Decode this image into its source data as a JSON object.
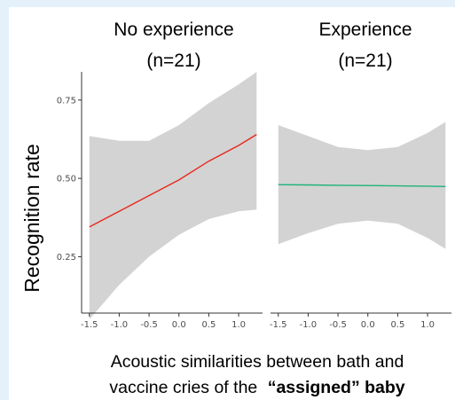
{
  "chart_data": {
    "type": "line",
    "ylabel": "Recognition rate",
    "xlabel_parts": [
      "Acoustic similarities between bath and",
      "vaccine cries of the",
      "“assigned” baby"
    ],
    "ylim": [
      0.07,
      0.84
    ],
    "yticks": [
      0.25,
      0.5,
      0.75
    ],
    "ytick_labels": [
      "0.25",
      "0.50",
      "0.75"
    ],
    "grid": false,
    "panels": [
      {
        "title_line1": "No experience",
        "title_line2": "(n=21)",
        "xlim": [
          -1.63,
          1.4
        ],
        "xticks": [
          -1.5,
          -1.0,
          -0.5,
          0.0,
          0.5,
          1.0
        ],
        "xtick_labels": [
          "-1.5",
          "-1.0",
          "-0.5",
          "0.0",
          "0.5",
          "1.0"
        ],
        "line_color": "#e8281e",
        "band_color": "#d3d3d3",
        "x": [
          -1.5,
          -1.0,
          -0.5,
          0.0,
          0.5,
          1.0,
          1.3
        ],
        "fit": [
          0.345,
          0.395,
          0.445,
          0.495,
          0.555,
          0.605,
          0.64
        ],
        "lower": [
          0.05,
          0.16,
          0.25,
          0.32,
          0.37,
          0.395,
          0.4
        ],
        "upper": [
          0.635,
          0.62,
          0.62,
          0.67,
          0.74,
          0.8,
          0.84
        ]
      },
      {
        "title_line1": "Experience",
        "title_line2": "(n=21)",
        "xlim": [
          -1.63,
          1.4
        ],
        "xticks": [
          -1.5,
          -1.0,
          -0.5,
          0.0,
          0.5,
          1.0
        ],
        "xtick_labels": [
          "-1.5",
          "-1.0",
          "-0.5",
          "0.0",
          "0.5",
          "1.0"
        ],
        "line_color": "#1db37a",
        "band_color": "#d3d3d3",
        "x": [
          -1.5,
          -1.0,
          -0.5,
          0.0,
          0.5,
          1.0,
          1.3
        ],
        "fit": [
          0.48,
          0.479,
          0.478,
          0.477,
          0.476,
          0.475,
          0.474
        ],
        "lower": [
          0.29,
          0.325,
          0.355,
          0.365,
          0.355,
          0.31,
          0.275
        ],
        "upper": [
          0.67,
          0.635,
          0.6,
          0.59,
          0.6,
          0.645,
          0.68
        ]
      }
    ]
  }
}
